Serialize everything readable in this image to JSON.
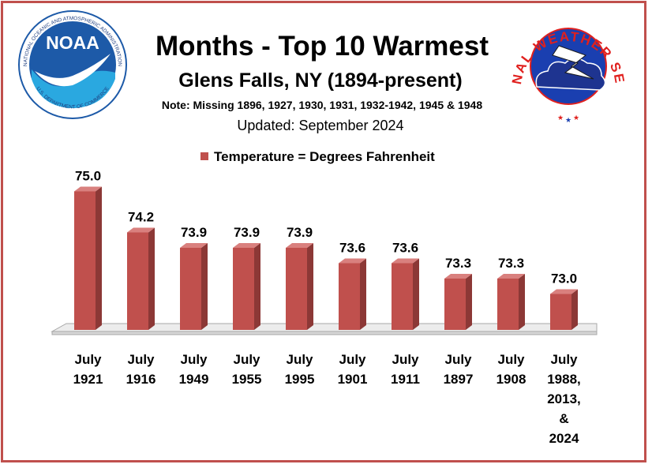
{
  "header": {
    "title": "Months - Top 10 Warmest",
    "subtitle": "Glens Falls, NY (1894-present)",
    "note": "Note: Missing 1896, 1927, 1930, 1931, 1932-1942, 1945 & 1948",
    "updated": "Updated:  September 2024"
  },
  "logos": {
    "noaa": {
      "wordmark": "NOAA",
      "ring_top": "NATIONAL OCEANIC AND ATMOSPHERIC ADMINISTRATION",
      "ring_bottom": "U.S. DEPARTMENT OF COMMERCE"
    },
    "nws": {
      "ring": "NATIONAL WEATHER SERVICE"
    }
  },
  "colors": {
    "bar_front": "#c0504d",
    "bar_side": "#8c3836",
    "bar_top": "#d9807e",
    "frame": "#c0504d",
    "noaa_blue": "#1d5aa8",
    "nws_red": "#e0201e"
  },
  "chart_data": {
    "type": "bar",
    "legend": "Temperature = Degrees Fahrenheit",
    "legend_position": "top",
    "grid": false,
    "ylim": [
      72.3,
      75.5
    ],
    "categories": [
      [
        "July",
        "1921"
      ],
      [
        "July",
        "1916"
      ],
      [
        "July",
        "1949"
      ],
      [
        "July",
        "1955"
      ],
      [
        "July",
        "1995"
      ],
      [
        "July",
        "1901"
      ],
      [
        "July",
        "1911"
      ],
      [
        "July",
        "1897"
      ],
      [
        "July",
        "1908"
      ],
      [
        "July",
        "1988,",
        "2013,",
        "&",
        "2024"
      ]
    ],
    "values": [
      75.0,
      74.2,
      73.9,
      73.9,
      73.9,
      73.6,
      73.6,
      73.3,
      73.3,
      73.0
    ],
    "value_labels": [
      "75.0",
      "74.2",
      "73.9",
      "73.9",
      "73.9",
      "73.6",
      "73.6",
      "73.3",
      "73.3",
      "73.0"
    ]
  }
}
